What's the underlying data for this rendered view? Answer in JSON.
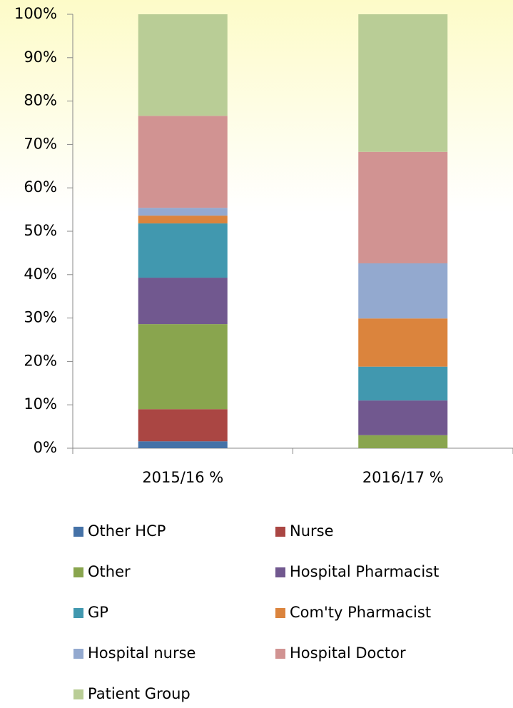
{
  "chart_data": {
    "type": "stacked_bar",
    "categories": [
      "2015/16 %",
      "2016/17 %"
    ],
    "series": [
      {
        "name": "Other HCP",
        "color": "#4572a7",
        "values": [
          1.6,
          0
        ]
      },
      {
        "name": "Nurse",
        "color": "#aa4643",
        "values": [
          7.4,
          0
        ]
      },
      {
        "name": "Other",
        "color": "#89a54e",
        "values": [
          19.6,
          3.0
        ]
      },
      {
        "name": "Hospital Pharmacist",
        "color": "#71588f",
        "values": [
          10.7,
          8.0
        ]
      },
      {
        "name": "GP",
        "color": "#4198af",
        "values": [
          12.5,
          7.8
        ]
      },
      {
        "name": "Com'ty Pharmacist",
        "color": "#db843d",
        "values": [
          1.8,
          11.1
        ]
      },
      {
        "name": "Hospital nurse",
        "color": "#93a9cf",
        "values": [
          1.8,
          12.7
        ]
      },
      {
        "name": "Hospital Doctor",
        "color": "#d19392",
        "values": [
          21.2,
          25.7
        ]
      },
      {
        "name": "Patient Group",
        "color": "#b9cd96",
        "values": [
          23.4,
          31.7
        ]
      }
    ],
    "ylim": [
      0,
      100
    ],
    "yticks": [
      {
        "value": 0,
        "label": "0%"
      },
      {
        "value": 10,
        "label": "10%"
      },
      {
        "value": 20,
        "label": "20%"
      },
      {
        "value": 30,
        "label": "30%"
      },
      {
        "value": 40,
        "label": "40%"
      },
      {
        "value": 50,
        "label": "50%"
      },
      {
        "value": 60,
        "label": "60%"
      },
      {
        "value": 70,
        "label": "70%"
      },
      {
        "value": 80,
        "label": "80%"
      },
      {
        "value": 90,
        "label": "90%"
      },
      {
        "value": 100,
        "label": "100%"
      }
    ],
    "grid": false
  }
}
